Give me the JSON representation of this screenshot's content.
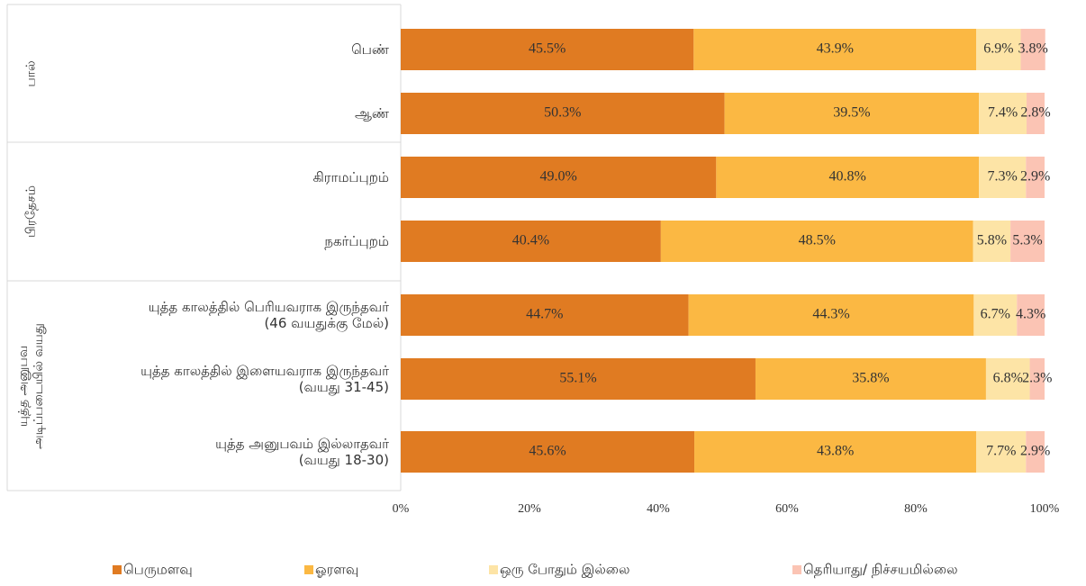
{
  "chart_data": {
    "type": "stacked-bar-horizontal",
    "groups": [
      {
        "name": "பால்",
        "categories": [
          "பெண்",
          "ஆண்"
        ]
      },
      {
        "name": "பிரதேசம்",
        "categories": [
          "கிராமப்புறம்",
          "நகர்ப்புறம்"
        ]
      },
      {
        "name": "யுத்த அனுபவ\nஅடிப்படையில் வயது",
        "categories": [
          "யுத்த காலத்தில் பெரியவராக இருந்தவர்\n(46 வயதுக்கு மேல்)",
          "யுத்த காலத்தில் இளையவராக இருந்தவர்\n(வயது 31-45)",
          "யுத்த அனுபவம் இல்லாதவர்\n(வயது 18-30)"
        ]
      }
    ],
    "series": [
      {
        "name": "பெருமளவு",
        "color": "#e07b22",
        "values": [
          45.5,
          50.3,
          49.0,
          40.4,
          44.7,
          55.1,
          45.6
        ],
        "value_labels": [
          "45.5%",
          "50.3%",
          "49.0%",
          "40.4%",
          "44.7%",
          "55.1%",
          "45.6%"
        ]
      },
      {
        "name": "ஓரளவு",
        "color": "#fbb843",
        "values": [
          43.9,
          39.5,
          40.8,
          48.5,
          44.3,
          35.8,
          43.8
        ],
        "value_labels": [
          "43.9%",
          "39.5%",
          "40.8%",
          "48.5%",
          "44.3%",
          "35.8%",
          "43.8%"
        ]
      },
      {
        "name": "ஒரு போதும் இல்லை",
        "color": "#fde4a6",
        "values": [
          6.9,
          7.4,
          7.3,
          5.8,
          6.7,
          6.8,
          7.7
        ],
        "value_labels": [
          "6.9%",
          "7.4%",
          "7.3%",
          "5.8%",
          "6.7%",
          "6.8%",
          "7.7%"
        ]
      },
      {
        "name": "தெரியாது/ நிச்சயமில்லை",
        "color": "#fbc4b4",
        "values": [
          3.8,
          2.8,
          2.9,
          5.3,
          4.3,
          2.3,
          2.9
        ],
        "value_labels": [
          "3.8%",
          "2.8%",
          "2.9%",
          "5.3%",
          "4.3%",
          "2.3%",
          "2.9%"
        ]
      }
    ],
    "xlim": [
      0,
      100
    ],
    "xticks": [
      {
        "value": 0,
        "label": "0%"
      },
      {
        "value": 20,
        "label": "20%"
      },
      {
        "value": 40,
        "label": "40%"
      },
      {
        "value": 60,
        "label": "60%"
      },
      {
        "value": 80,
        "label": "80%"
      },
      {
        "value": 100,
        "label": "100%"
      }
    ],
    "legend": "bottom"
  }
}
